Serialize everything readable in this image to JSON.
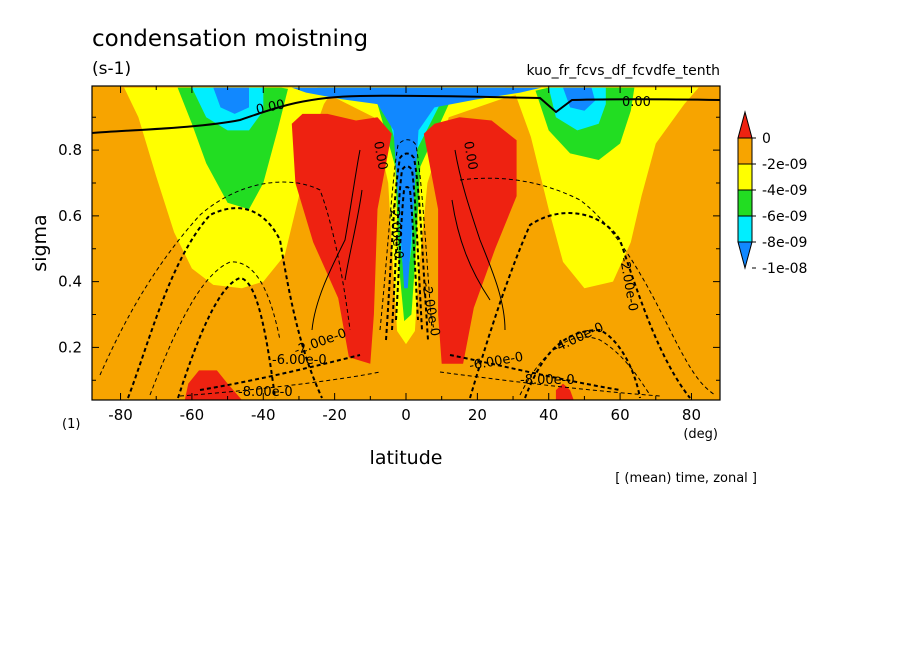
{
  "chart_data": {
    "type": "heatmap",
    "title": "condensation moistning",
    "units": "(s-1)",
    "experiment": "kuo_fr_fcvs_df_fcvdfe_tenth",
    "xlabel": "latitude",
    "ylabel": "sigma",
    "x_units": "(deg)",
    "panel_label": "(1)",
    "footnote": "[ (mean) time, zonal ]",
    "xlim": [
      -88,
      88
    ],
    "ylim": [
      0.995,
      0.04
    ],
    "x_ticks": [
      -80,
      -60,
      -40,
      -20,
      0,
      20,
      40,
      60,
      80
    ],
    "x_tick_labels": [
      "-80",
      "-60",
      "-40",
      "-20",
      "0",
      "20",
      "40",
      "60",
      "80"
    ],
    "y_ticks": [
      0.2,
      0.4,
      0.6,
      0.8
    ],
    "y_tick_labels": [
      "0.2",
      "0.4",
      "0.6",
      "0.8"
    ],
    "colorbar": {
      "labels": [
        "0",
        "-2e-09",
        "-4e-09",
        "-6e-09",
        "-8e-09",
        "-1e-08"
      ],
      "levels": [
        {
          "range": "> 0",
          "color": "#ee2211"
        },
        {
          "range": "0 to -2e-09",
          "color": "#f7a400"
        },
        {
          "range": "-2e-09 to -4e-09",
          "color": "#ffff00"
        },
        {
          "range": "-4e-09 to -6e-09",
          "color": "#22dd22"
        },
        {
          "range": "-6e-09 to -8e-09",
          "color": "#00eeff"
        },
        {
          "range": "< -8e-09",
          "color": "#1188ff"
        }
      ]
    },
    "contour_labels": [
      "0.00",
      "0.00",
      "0.00",
      "0.00",
      "-2.00e-0",
      "-2.00e-0",
      "-2.00e-0",
      "-2.00e-0",
      "-4.00e-0",
      "-6.00e-0",
      "-6.00e-0",
      "-8.00e-0",
      "-8.00e-0"
    ],
    "regions": [
      {
        "name": "top-left-positive",
        "color": "#ee2211",
        "points": [
          [
            -62,
            0.04
          ],
          [
            -46,
            0.04
          ],
          [
            -50,
            0.09
          ],
          [
            -53,
            0.13
          ],
          [
            -58,
            0.13
          ],
          [
            -61,
            0.09
          ]
        ]
      },
      {
        "name": "top-right-positive",
        "color": "#ee2211",
        "points": [
          [
            42,
            0.04
          ],
          [
            47,
            0.04
          ],
          [
            46,
            0.07
          ],
          [
            44,
            0.09
          ],
          [
            42,
            0.07
          ]
        ]
      },
      {
        "name": "left-yellow",
        "color": "#ffff00",
        "points": [
          [
            -79,
            0.99
          ],
          [
            -75,
            0.9
          ],
          [
            -70,
            0.72
          ],
          [
            -65,
            0.55
          ],
          [
            -60,
            0.44
          ],
          [
            -54,
            0.39
          ],
          [
            -46,
            0.38
          ],
          [
            -40,
            0.4
          ],
          [
            -34,
            0.48
          ],
          [
            -30,
            0.66
          ],
          [
            -27,
            0.82
          ],
          [
            -23,
            0.94
          ],
          [
            -20,
            0.99
          ]
        ]
      },
      {
        "name": "left-green",
        "color": "#22dd22",
        "points": [
          [
            -64,
            0.99
          ],
          [
            -60,
            0.88
          ],
          [
            -56,
            0.76
          ],
          [
            -50,
            0.64
          ],
          [
            -44,
            0.62
          ],
          [
            -40,
            0.7
          ],
          [
            -36,
            0.86
          ],
          [
            -33,
            0.99
          ]
        ]
      },
      {
        "name": "left-cyan",
        "color": "#00eeff",
        "points": [
          [
            -60,
            0.99
          ],
          [
            -56,
            0.9
          ],
          [
            -50,
            0.86
          ],
          [
            -44,
            0.86
          ],
          [
            -40,
            0.92
          ],
          [
            -40,
            0.99
          ]
        ]
      },
      {
        "name": "left-blue",
        "color": "#1188ff",
        "points": [
          [
            -54,
            0.99
          ],
          [
            -52,
            0.93
          ],
          [
            -48,
            0.91
          ],
          [
            -44,
            0.93
          ],
          [
            -44,
            0.99
          ]
        ]
      },
      {
        "name": "right-yellow",
        "color": "#ffff00",
        "points": [
          [
            30,
            0.99
          ],
          [
            35,
            0.84
          ],
          [
            40,
            0.62
          ],
          [
            44,
            0.46
          ],
          [
            50,
            0.38
          ],
          [
            58,
            0.4
          ],
          [
            63,
            0.52
          ],
          [
            66,
            0.66
          ],
          [
            70,
            0.82
          ],
          [
            78,
            0.94
          ],
          [
            82,
            0.99
          ]
        ]
      },
      {
        "name": "right-green",
        "color": "#22dd22",
        "points": [
          [
            36,
            0.99
          ],
          [
            40,
            0.86
          ],
          [
            46,
            0.79
          ],
          [
            54,
            0.77
          ],
          [
            60,
            0.82
          ],
          [
            63,
            0.92
          ],
          [
            64,
            0.99
          ]
        ]
      },
      {
        "name": "right-cyan",
        "color": "#00eeff",
        "points": [
          [
            40,
            0.99
          ],
          [
            42,
            0.9
          ],
          [
            48,
            0.86
          ],
          [
            54,
            0.88
          ],
          [
            56,
            0.94
          ],
          [
            56,
            0.99
          ]
        ]
      },
      {
        "name": "right-blue",
        "color": "#1188ff",
        "points": [
          [
            44,
            0.99
          ],
          [
            46,
            0.93
          ],
          [
            50,
            0.92
          ],
          [
            53,
            0.95
          ],
          [
            52,
            0.99
          ]
        ]
      },
      {
        "name": "equatorial-yellow",
        "color": "#ffff00",
        "points": [
          [
            -35,
            0.99
          ],
          [
            -20,
            0.96
          ],
          [
            -9,
            0.9
          ],
          [
            -5,
            0.7
          ],
          [
            -3.5,
            0.42
          ],
          [
            -2.5,
            0.25
          ],
          [
            0,
            0.21
          ],
          [
            2.5,
            0.25
          ],
          [
            3.5,
            0.42
          ],
          [
            6,
            0.7
          ],
          [
            12,
            0.9
          ],
          [
            28,
            0.96
          ],
          [
            40,
            0.99
          ]
        ]
      },
      {
        "name": "equatorial-green",
        "color": "#22dd22",
        "points": [
          [
            -25,
            0.99
          ],
          [
            -8,
            0.94
          ],
          [
            -3,
            0.75
          ],
          [
            -2,
            0.45
          ],
          [
            -0.5,
            0.28
          ],
          [
            1.5,
            0.3
          ],
          [
            2.5,
            0.45
          ],
          [
            4,
            0.75
          ],
          [
            12,
            0.94
          ],
          [
            30,
            0.99
          ]
        ]
      },
      {
        "name": "equatorial-cyan",
        "color": "#00eeff",
        "points": [
          [
            -22,
            0.99
          ],
          [
            -6,
            0.95
          ],
          [
            -2.5,
            0.8
          ],
          [
            -1.5,
            0.5
          ],
          [
            0,
            0.38
          ],
          [
            1.5,
            0.5
          ],
          [
            3,
            0.8
          ],
          [
            10,
            0.95
          ],
          [
            28,
            0.99
          ]
        ]
      },
      {
        "name": "equatorial-blue",
        "color": "#1188ff",
        "points": [
          [
            -32,
            0.99
          ],
          [
            -28,
            0.975
          ],
          [
            -18,
            0.955
          ],
          [
            -8,
            0.94
          ],
          [
            -3.5,
            0.86
          ],
          [
            -1.8,
            0.58
          ],
          [
            -0.5,
            0.38
          ],
          [
            0.5,
            0.38
          ],
          [
            1.8,
            0.58
          ],
          [
            3.5,
            0.86
          ],
          [
            8,
            0.93
          ],
          [
            20,
            0.955
          ],
          [
            32,
            0.975
          ],
          [
            38,
            0.99
          ]
        ]
      },
      {
        "name": "left-positive",
        "color": "#ee2211",
        "points": [
          [
            -32,
            0.88
          ],
          [
            -31,
            0.7
          ],
          [
            -26,
            0.52
          ],
          [
            -19,
            0.35
          ],
          [
            -16,
            0.17
          ],
          [
            -10,
            0.15
          ],
          [
            -9,
            0.3
          ],
          [
            -8,
            0.62
          ],
          [
            -4,
            0.85
          ],
          [
            -8,
            0.9
          ],
          [
            -14,
            0.89
          ],
          [
            -22,
            0.91
          ],
          [
            -29,
            0.91
          ]
        ]
      },
      {
        "name": "right-positive",
        "color": "#ee2211",
        "points": [
          [
            5,
            0.85
          ],
          [
            9,
            0.62
          ],
          [
            9,
            0.3
          ],
          [
            10,
            0.15
          ],
          [
            16,
            0.15
          ],
          [
            19,
            0.32
          ],
          [
            25,
            0.5
          ],
          [
            31,
            0.66
          ],
          [
            31,
            0.83
          ],
          [
            24,
            0.89
          ],
          [
            15,
            0.9
          ],
          [
            8,
            0.88
          ]
        ]
      }
    ]
  }
}
